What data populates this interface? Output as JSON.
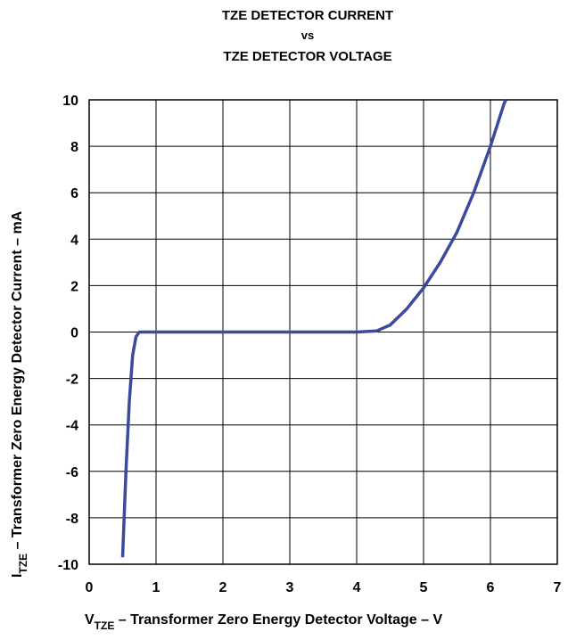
{
  "chart_data": {
    "type": "line",
    "title": [
      "TZE DETECTOR CURRENT",
      "vs",
      "TZE DETECTOR VOLTAGE"
    ],
    "x_label": {
      "main": "V",
      "sub": "TZE",
      "rest": " – Transformer Zero Energy Detector Voltage – V"
    },
    "y_label": {
      "main": "I",
      "sub": "TZE",
      "rest": " – Transformer Zero Energy Detector Current – mA"
    },
    "x": [
      0.5,
      0.55,
      0.6,
      0.65,
      0.7,
      0.75,
      1,
      2,
      3,
      4,
      4.3,
      4.5,
      4.75,
      5,
      5.25,
      5.5,
      5.75,
      6,
      6.2,
      6.23
    ],
    "series": [
      {
        "color": "#3b4a9c",
        "values": [
          -9.7,
          -6,
          -3,
          -1,
          -0.2,
          0,
          0,
          0,
          0,
          0,
          0.05,
          0.3,
          1,
          1.9,
          3,
          4.3,
          6,
          8,
          9.8,
          10
        ]
      }
    ],
    "xlim": [
      0,
      7
    ],
    "xticks": [
      0,
      1,
      2,
      3,
      4,
      5,
      6,
      7
    ],
    "ylim": [
      -10,
      10
    ],
    "yticks": [
      -10,
      -8,
      -6,
      -4,
      -2,
      0,
      2,
      4,
      6,
      8,
      10
    ],
    "grid": true
  }
}
